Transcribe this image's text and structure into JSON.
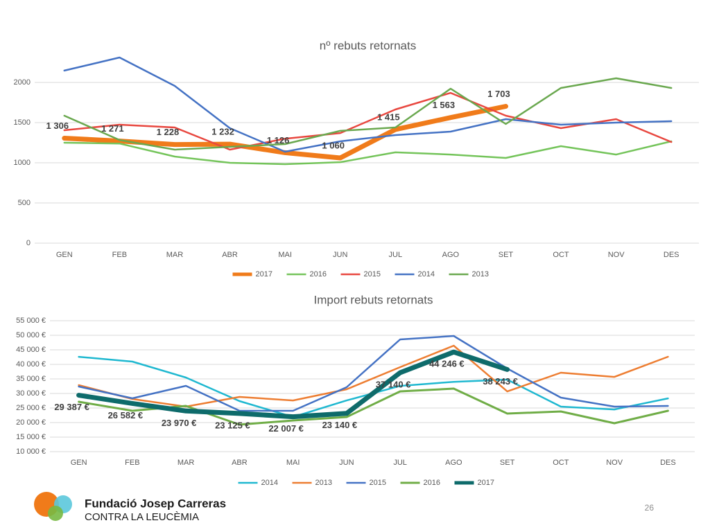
{
  "chart_data": [
    {
      "type": "line",
      "title": "nº rebuts retornats",
      "categories": [
        "GEN",
        "FEB",
        "MAR",
        "ABR",
        "MAI",
        "JUN",
        "JUL",
        "AGO",
        "SET",
        "OCT",
        "NOV",
        "DES"
      ],
      "ylim": [
        0,
        2500
      ],
      "yticks": [
        0,
        500,
        1000,
        1500,
        2000
      ],
      "grid": true,
      "legend": "bottom",
      "series": [
        {
          "name": "2017",
          "color": "#f07b1a",
          "line_width": 7,
          "values": [
            1306,
            1271,
            1228,
            1232,
            1126,
            1060,
            1415,
            1563,
            1703,
            null,
            null,
            null
          ],
          "value_labels": [
            "1 306",
            "1 271",
            "1 228",
            "1 232",
            "1 126",
            "1 060",
            "1 415",
            "1 563",
            "1 703",
            null,
            null,
            null
          ]
        },
        {
          "name": "2016",
          "color": "#74c45a",
          "line_width": 2.5,
          "values": [
            1250,
            1240,
            1078,
            1000,
            983,
            1008,
            1130,
            1103,
            1060,
            1207,
            1103,
            1267
          ]
        },
        {
          "name": "2015",
          "color": "#e8473f",
          "line_width": 2.5,
          "values": [
            1405,
            1474,
            1440,
            1164,
            1300,
            1370,
            1664,
            1870,
            1586,
            1431,
            1543,
            1259
          ]
        },
        {
          "name": "2014",
          "color": "#4472c4",
          "line_width": 2.5,
          "values": [
            2147,
            2310,
            1957,
            1431,
            1138,
            1267,
            1345,
            1388,
            1543,
            1474,
            1500,
            1517
          ]
        },
        {
          "name": "2013",
          "color": "#6aa84f",
          "line_width": 2.5,
          "values": [
            1586,
            1284,
            1164,
            1198,
            1233,
            1397,
            1440,
            1922,
            1483,
            1931,
            2052,
            1931
          ]
        }
      ]
    },
    {
      "type": "line",
      "title": "Import rebuts retornats",
      "categories": [
        "GEN",
        "FEB",
        "MAR",
        "ABR",
        "MAI",
        "JUN",
        "JUL",
        "AGO",
        "SET",
        "OCT",
        "NOV",
        "DES"
      ],
      "ylim": [
        10000,
        55000
      ],
      "yticks": [
        {
          "value": 10000,
          "label": "10 000 €"
        },
        {
          "value": 15000,
          "label": "15 000 €"
        },
        {
          "value": 20000,
          "label": "20 000 €"
        },
        {
          "value": 25000,
          "label": "25 000 €"
        },
        {
          "value": 30000,
          "label": "30 000 €"
        },
        {
          "value": 35000,
          "label": "35 000 €"
        },
        {
          "value": 40000,
          "label": "40 000 €"
        },
        {
          "value": 45000,
          "label": "45 000 €"
        },
        {
          "value": 50000,
          "label": "50 000 €"
        },
        {
          "value": 55000,
          "label": "55 000 €"
        }
      ],
      "grid": true,
      "legend": "bottom",
      "series": [
        {
          "name": "2014",
          "color": "#1fb8d0",
          "line_width": 2.5,
          "values": [
            42600,
            40950,
            35480,
            27380,
            21900,
            27600,
            32600,
            34000,
            34760,
            25480,
            24500,
            28300
          ]
        },
        {
          "name": "2013",
          "color": "#ed7d31",
          "line_width": 2.5,
          "values": [
            32860,
            28100,
            25480,
            28800,
            27600,
            31430,
            39050,
            46430,
            30700,
            37140,
            35700,
            42620
          ]
        },
        {
          "name": "2015",
          "color": "#4472c4",
          "line_width": 2.5,
          "values": [
            32380,
            28330,
            32620,
            24050,
            24050,
            32140,
            48570,
            49760,
            38570,
            28570,
            25480,
            25710
          ]
        },
        {
          "name": "2016",
          "color": "#70ad47",
          "line_width": 3,
          "values": [
            27140,
            24050,
            25710,
            19290,
            20710,
            21900,
            30710,
            31670,
            23100,
            23810,
            19760,
            24050
          ]
        },
        {
          "name": "2017",
          "color": "#0e6b6b",
          "line_width": 7,
          "values": [
            29387,
            26582,
            23970,
            23125,
            22007,
            23140,
            37140,
            44246,
            38243,
            null,
            null,
            null
          ],
          "value_labels": [
            "29 387 €",
            "26 582 €",
            "23 970 €",
            "23 125 €",
            "22 007 €",
            "23 140 €",
            "37 140 €",
            "44 246 €",
            "38 243 €",
            null,
            null,
            null
          ]
        }
      ]
    }
  ],
  "footer": {
    "org": "Fundació Josep Carreras",
    "tagline": "CONTRA LA LEUCÈMIA",
    "page": "26"
  }
}
